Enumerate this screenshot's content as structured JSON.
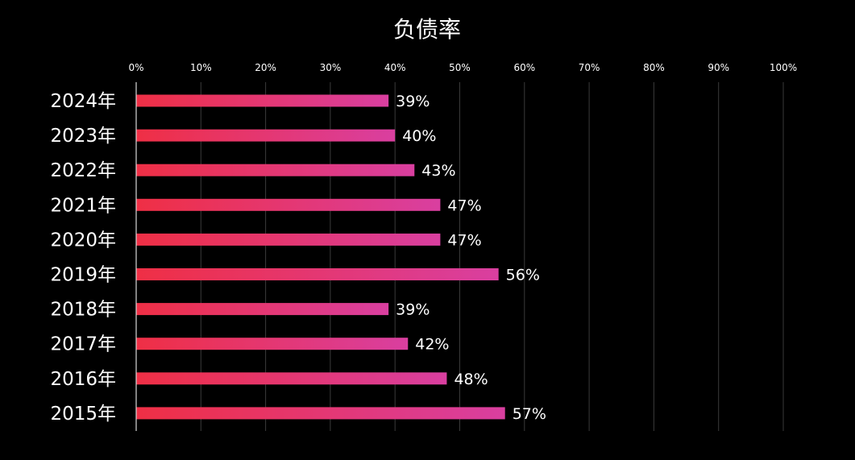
{
  "chart_data": {
    "type": "bar",
    "orientation": "horizontal",
    "title": "负债率",
    "categories": [
      "2024年",
      "2023年",
      "2022年",
      "2021年",
      "2020年",
      "2019年",
      "2018年",
      "2017年",
      "2016年",
      "2015年"
    ],
    "values": [
      39,
      40,
      43,
      47,
      47,
      56,
      39,
      42,
      48,
      57
    ],
    "data_labels": [
      "39%",
      "40%",
      "43%",
      "47%",
      "47%",
      "56%",
      "39%",
      "42%",
      "48%",
      "57%"
    ],
    "x_ticks": [
      "0%",
      "10%",
      "20%",
      "30%",
      "40%",
      "50%",
      "60%",
      "70%",
      "80%",
      "90%",
      "100%"
    ],
    "xlim": [
      0,
      100
    ],
    "x_axis_position": "top",
    "grid": true,
    "colors": {
      "background": "#000000",
      "bar_start": "#ef2f45",
      "bar_end": "#d93fa0",
      "text": "#ffffff"
    }
  }
}
